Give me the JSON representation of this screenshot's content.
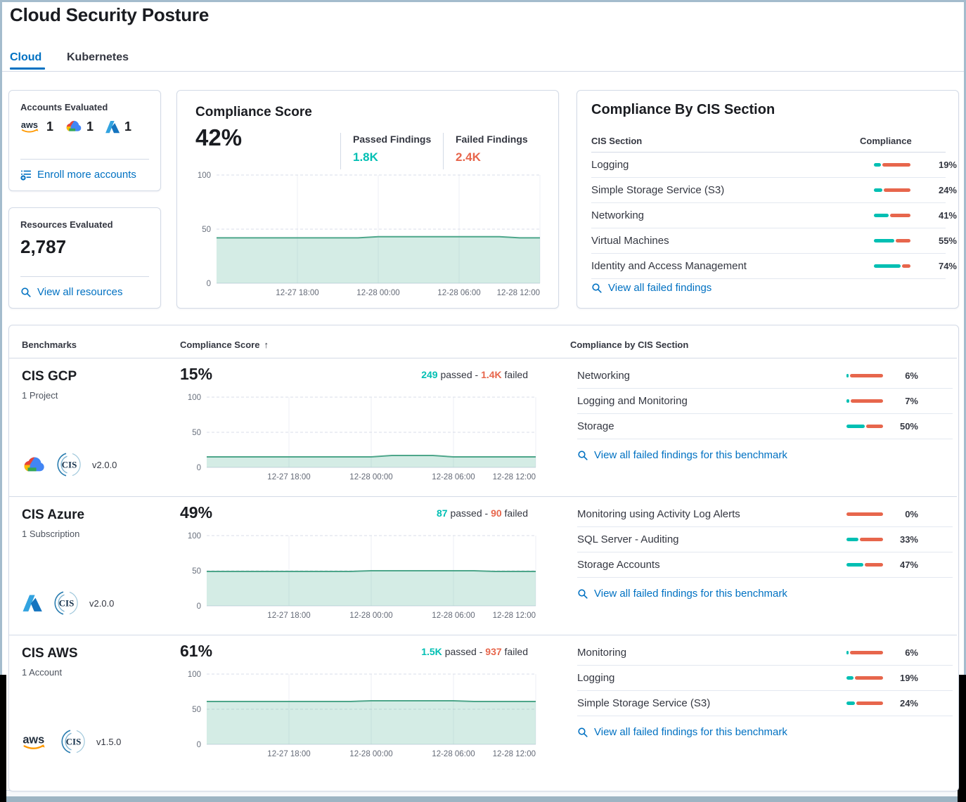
{
  "page": {
    "title": "Cloud Security Posture"
  },
  "tabs": {
    "cloud": "Cloud",
    "kubernetes": "Kubernetes"
  },
  "logos": {
    "cis": "CIS",
    "aws": "aws"
  },
  "accounts_panel": {
    "title": "Accounts Evaluated",
    "aws_count": "1",
    "gcp_count": "1",
    "azure_count": "1",
    "enroll_link": "Enroll more accounts"
  },
  "resources_panel": {
    "title": "Resources Evaluated",
    "count": "2,787",
    "view_link": "View all resources"
  },
  "score_panel": {
    "title": "Compliance Score",
    "score": "42%",
    "passed_label": "Passed Findings",
    "passed_value": "1.8K",
    "failed_label": "Failed Findings",
    "failed_value": "2.4K",
    "chart": {
      "type": "area",
      "ymax": 100,
      "yticks": [
        "100",
        "50",
        "0"
      ],
      "xticks": [
        "12-27 18:00",
        "12-28 00:00",
        "12-28 06:00",
        "12-28 12:00"
      ],
      "values": [
        42,
        42,
        42,
        42,
        42,
        42,
        42,
        42,
        43,
        43,
        43,
        43,
        43,
        43,
        43,
        42,
        42
      ]
    }
  },
  "cis_panel": {
    "title": "Compliance By CIS Section",
    "header_section": "CIS Section",
    "header_compliance": "Compliance",
    "rows": [
      {
        "label": "Logging",
        "pct": 19,
        "pct_label": "19%"
      },
      {
        "label": "Simple Storage Service (S3)",
        "pct": 24,
        "pct_label": "24%"
      },
      {
        "label": "Networking",
        "pct": 41,
        "pct_label": "41%"
      },
      {
        "label": "Virtual Machines",
        "pct": 55,
        "pct_label": "55%"
      },
      {
        "label": "Identity and Access Management",
        "pct": 74,
        "pct_label": "74%"
      }
    ],
    "link": "View all failed findings"
  },
  "benchmarks": {
    "header_benchmarks": "Benchmarks",
    "header_score": "Compliance Score",
    "sort_arrow": "↑",
    "header_sections": "Compliance by CIS Section",
    "rows": [
      {
        "name": "CIS GCP",
        "subtitle": "1 Project",
        "provider": "gcp",
        "version": "v2.0.0",
        "score": "15%",
        "passed": "249",
        "passed_word": "passed -",
        "failed": "1.4K",
        "failed_word": "failed",
        "sections": [
          {
            "label": "Networking",
            "pct": 6,
            "pct_label": "6%"
          },
          {
            "label": "Logging and Monitoring",
            "pct": 7,
            "pct_label": "7%"
          },
          {
            "label": "Storage",
            "pct": 50,
            "pct_label": "50%"
          }
        ],
        "link": "View all failed findings for this benchmark",
        "chart": {
          "type": "area",
          "ymax": 100,
          "yticks": [
            "100",
            "50",
            "0"
          ],
          "xticks": [
            "12-27 18:00",
            "12-28 00:00",
            "12-28 06:00",
            "12-28 12:00"
          ],
          "values": [
            15,
            15,
            15,
            15,
            15,
            15,
            15,
            15,
            15,
            17,
            17,
            17,
            15,
            15,
            15,
            15,
            15
          ]
        }
      },
      {
        "name": "CIS Azure",
        "subtitle": "1 Subscription",
        "provider": "azure",
        "version": "v2.0.0",
        "score": "49%",
        "passed": "87",
        "passed_word": "passed -",
        "failed": "90",
        "failed_word": "failed",
        "sections": [
          {
            "label": "Monitoring using Activity Log Alerts",
            "pct": 0,
            "pct_label": "0%"
          },
          {
            "label": "SQL Server - Auditing",
            "pct": 33,
            "pct_label": "33%"
          },
          {
            "label": "Storage Accounts",
            "pct": 47,
            "pct_label": "47%"
          }
        ],
        "link": "View all failed findings for this benchmark",
        "chart": {
          "type": "area",
          "ymax": 100,
          "yticks": [
            "100",
            "50",
            "0"
          ],
          "xticks": [
            "12-27 18:00",
            "12-28 00:00",
            "12-28 06:00",
            "12-28 12:00"
          ],
          "values": [
            49,
            49,
            49,
            49,
            49,
            49,
            49,
            49,
            50,
            50,
            50,
            50,
            50,
            50,
            49,
            49,
            49
          ]
        }
      },
      {
        "name": "CIS AWS",
        "subtitle": "1 Account",
        "provider": "aws",
        "version": "v1.5.0",
        "score": "61%",
        "passed": "1.5K",
        "passed_word": "passed -",
        "failed": "937",
        "failed_word": "failed",
        "sections": [
          {
            "label": "Monitoring",
            "pct": 6,
            "pct_label": "6%"
          },
          {
            "label": "Logging",
            "pct": 19,
            "pct_label": "19%"
          },
          {
            "label": "Simple Storage Service (S3)",
            "pct": 24,
            "pct_label": "24%"
          }
        ],
        "link": "View all failed findings for this benchmark",
        "chart": {
          "type": "area",
          "ymax": 100,
          "yticks": [
            "100",
            "50",
            "0"
          ],
          "xticks": [
            "12-27 18:00",
            "12-28 00:00",
            "12-28 06:00",
            "12-28 12:00"
          ],
          "values": [
            61,
            61,
            61,
            61,
            61,
            61,
            61,
            61,
            62,
            62,
            62,
            62,
            62,
            61,
            61,
            61,
            61
          ]
        }
      }
    ]
  }
}
